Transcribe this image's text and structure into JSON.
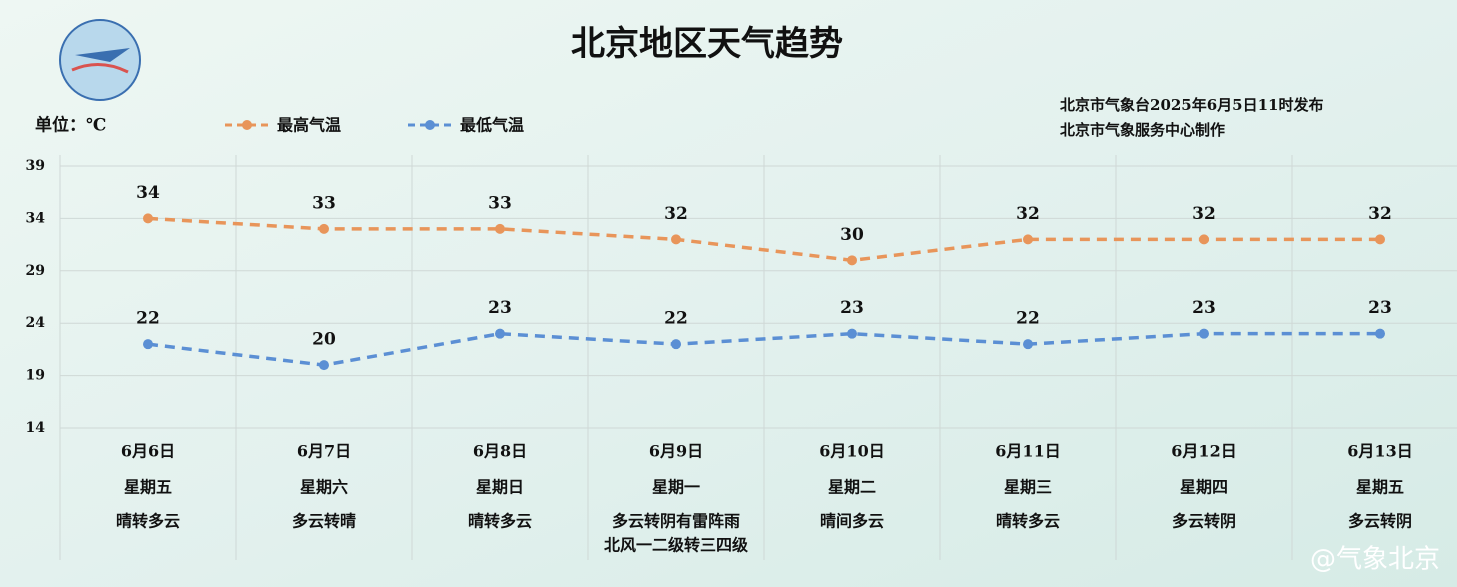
{
  "chart_data": {
    "type": "line",
    "title": "北京地区天气趋势",
    "unit_label": "单位：℃",
    "issuer": [
      "北京市气象台2025年6月5日11时发布",
      "北京市气象服务中心制作"
    ],
    "watermark": "@气象北京",
    "categories": [
      "6月6日",
      "6月7日",
      "6月8日",
      "6月9日",
      "6月10日",
      "6月11日",
      "6月12日",
      "6月13日"
    ],
    "weekdays": [
      "星期五",
      "星期六",
      "星期日",
      "星期一",
      "星期二",
      "星期三",
      "星期四",
      "星期五"
    ],
    "weather": [
      [
        "晴转多云"
      ],
      [
        "多云转晴"
      ],
      [
        "晴转多云"
      ],
      [
        "多云转阴有雷阵雨",
        "北风一二级转三四级"
      ],
      [
        "晴间多云"
      ],
      [
        "晴转多云"
      ],
      [
        "多云转阴"
      ],
      [
        "多云转阴"
      ]
    ],
    "series": [
      {
        "name": "最高气温",
        "color": "#e8955a",
        "values": [
          34,
          33,
          33,
          32,
          30,
          32,
          32,
          32
        ]
      },
      {
        "name": "最低气温",
        "color": "#5b8fd4",
        "values": [
          22,
          20,
          23,
          22,
          23,
          22,
          23,
          23
        ]
      }
    ],
    "ylim": [
      14,
      39
    ],
    "yticks": [
      14,
      19,
      24,
      29,
      34,
      39
    ],
    "grid": true
  }
}
